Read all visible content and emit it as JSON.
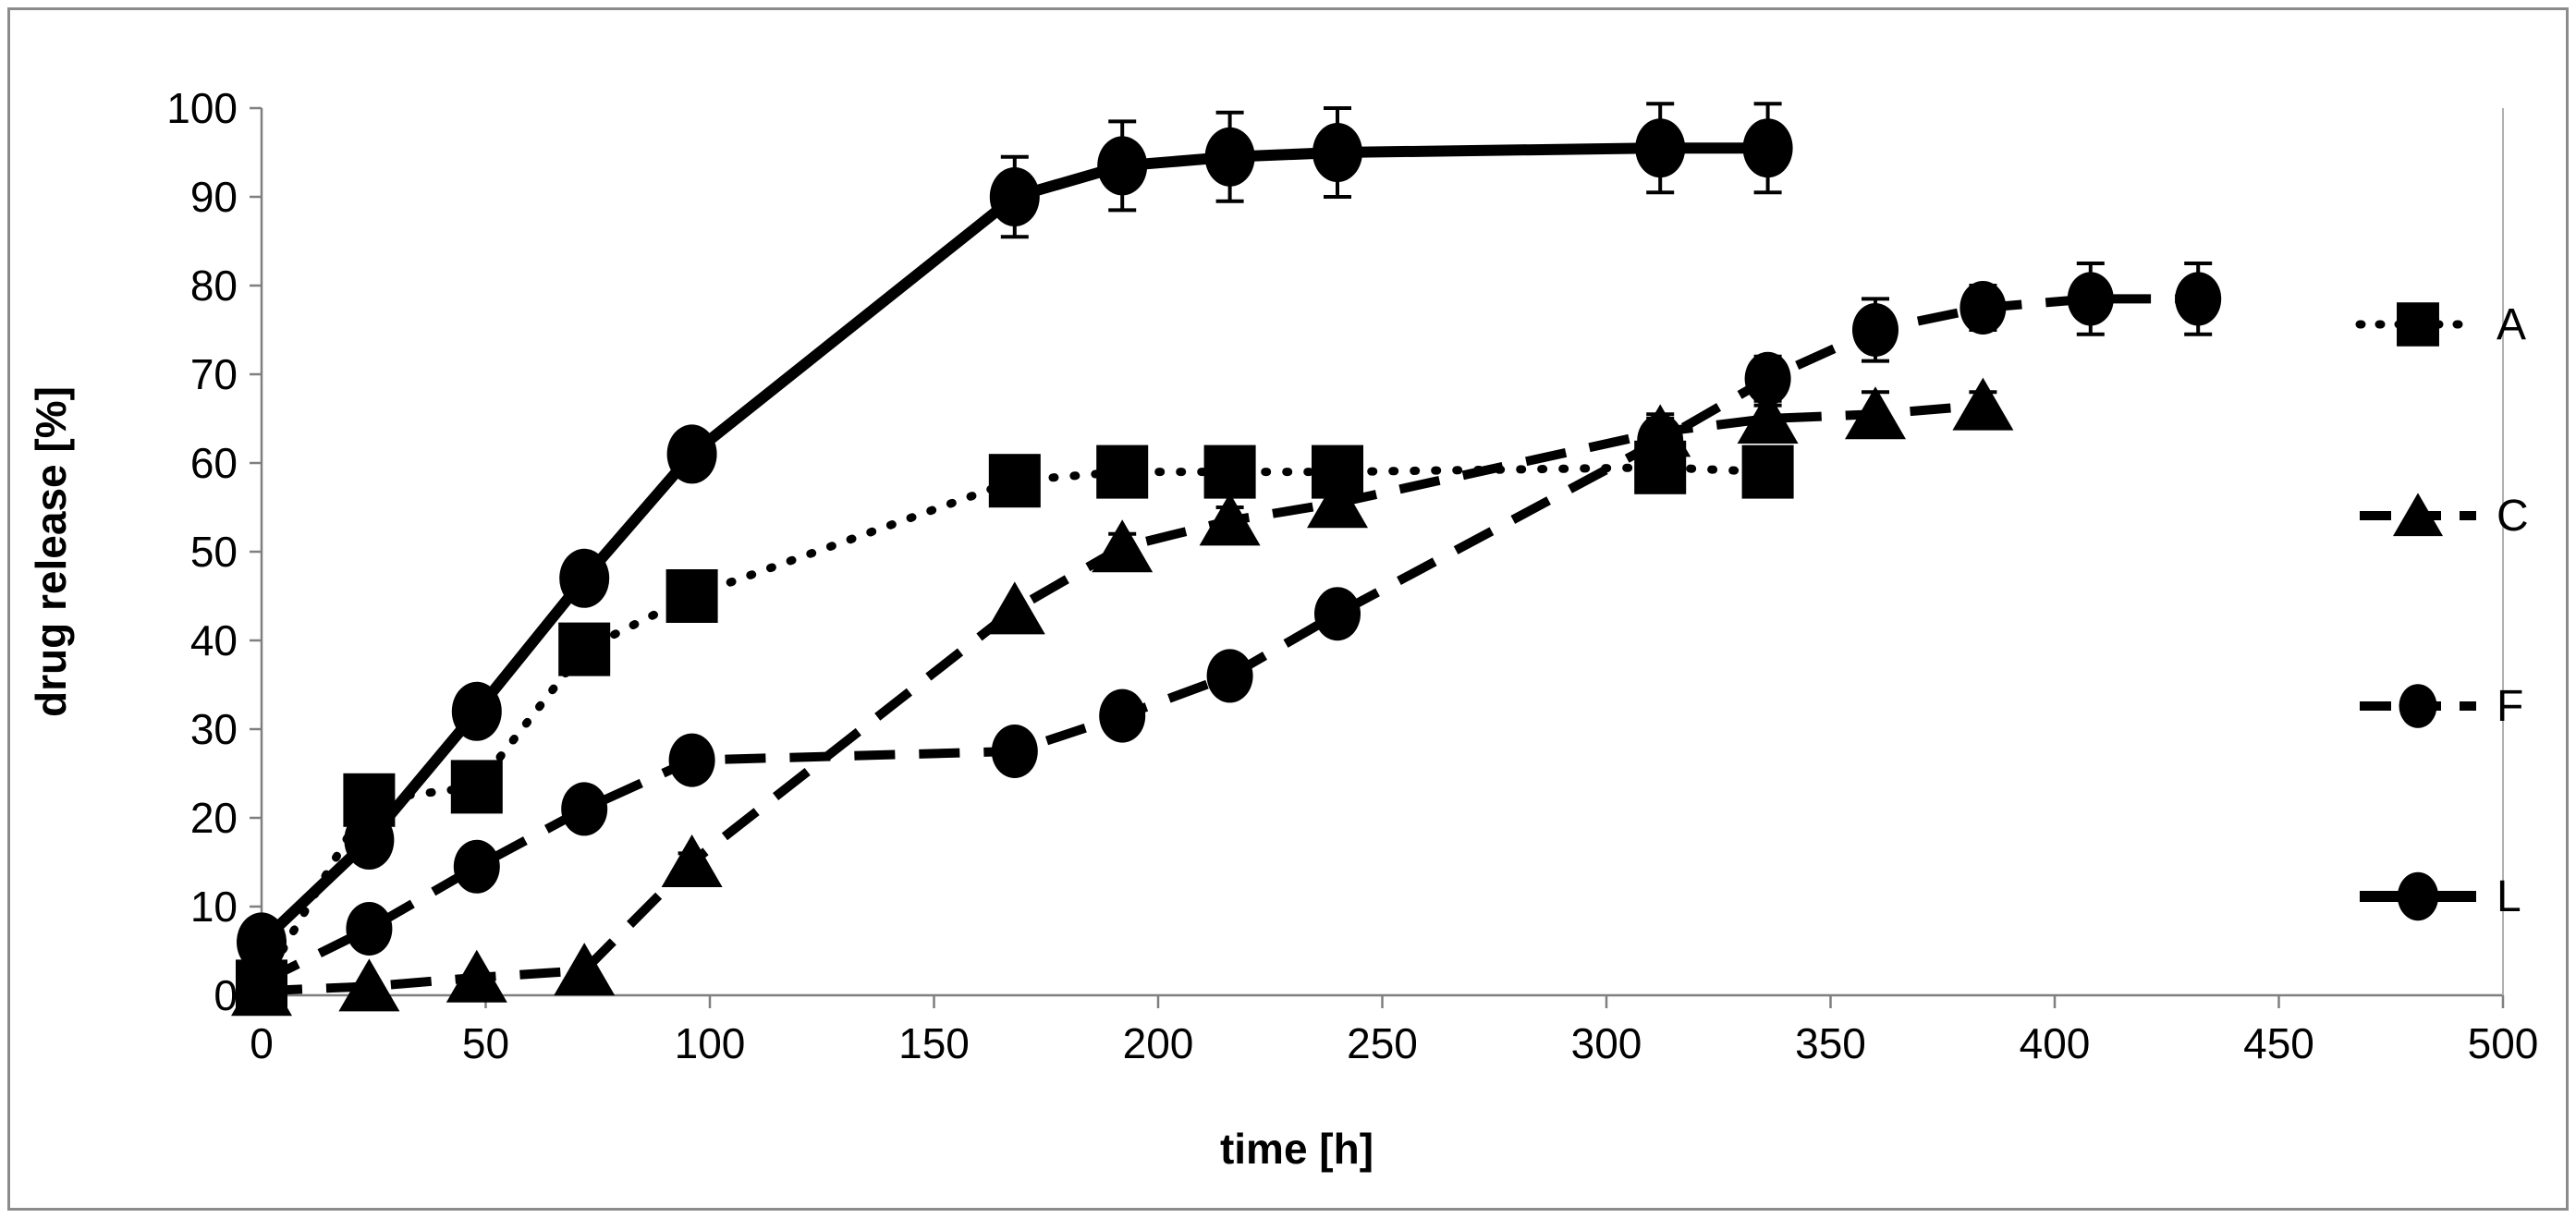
{
  "chart_data": {
    "type": "line",
    "title": "",
    "xlabel": "time [h]",
    "ylabel": "drug release [%]",
    "xlim": [
      0,
      500
    ],
    "xtick_step": 50,
    "ylim": [
      0,
      100
    ],
    "ytick_step": 10,
    "grid": false,
    "legend_position": "right",
    "background_color": "#ffffff",
    "series_color": "#000000",
    "axis_color": "#7f7f7f",
    "series": [
      {
        "name": "A",
        "line": "dotted",
        "marker": "square",
        "x": [
          0,
          24,
          48,
          72,
          96,
          168,
          192,
          216,
          240,
          312,
          336
        ],
        "y": [
          1,
          22,
          23.5,
          39,
          45,
          58,
          59,
          59,
          59,
          59.5,
          59
        ],
        "err": [
          0,
          0,
          0,
          0,
          0,
          2,
          2,
          2,
          2,
          2.5,
          2.5
        ]
      },
      {
        "name": "C",
        "line": "dashed",
        "marker": "triangle",
        "x": [
          0,
          24,
          48,
          72,
          96,
          168,
          192,
          216,
          240,
          312,
          336,
          360,
          384
        ],
        "y": [
          0.5,
          1,
          2,
          2.8,
          15,
          43.5,
          50.5,
          53.5,
          55.5,
          63.5,
          65,
          65.5,
          66.5
        ],
        "err": [
          0,
          0,
          0,
          0,
          1,
          0,
          1.5,
          1.5,
          1,
          1.5,
          1.5,
          2.5,
          1.5
        ]
      },
      {
        "name": "F",
        "line": "dashed",
        "marker": "circle-small",
        "x": [
          0,
          24,
          48,
          72,
          96,
          168,
          192,
          216,
          240,
          312,
          336,
          360,
          384,
          408,
          432
        ],
        "y": [
          1.5,
          7.5,
          14.5,
          21,
          26.5,
          27.5,
          31.5,
          36,
          43,
          62.5,
          69.5,
          75,
          77.5,
          78.5,
          78.5
        ],
        "err": [
          0,
          0,
          0,
          0,
          0,
          0,
          0,
          0,
          0,
          3,
          2.5,
          3.5,
          2.5,
          4,
          4
        ]
      },
      {
        "name": "L",
        "line": "solid",
        "marker": "circle",
        "x": [
          0,
          24,
          48,
          72,
          96,
          168,
          192,
          216,
          240,
          312,
          336
        ],
        "y": [
          6,
          17.5,
          32,
          47,
          61,
          90,
          93.5,
          94.5,
          95,
          95.5,
          95.5
        ],
        "err": [
          0,
          0,
          0,
          0,
          2.5,
          4.5,
          5,
          5,
          5,
          5,
          5
        ]
      }
    ],
    "x_tick_labels": [
      "0",
      "50",
      "100",
      "150",
      "200",
      "250",
      "300",
      "350",
      "400",
      "450",
      "500"
    ],
    "y_tick_labels": [
      "0",
      "10",
      "20",
      "30",
      "40",
      "50",
      "60",
      "70",
      "80",
      "90",
      "100"
    ],
    "legend_labels": [
      "A",
      "C",
      "F",
      "L"
    ]
  }
}
